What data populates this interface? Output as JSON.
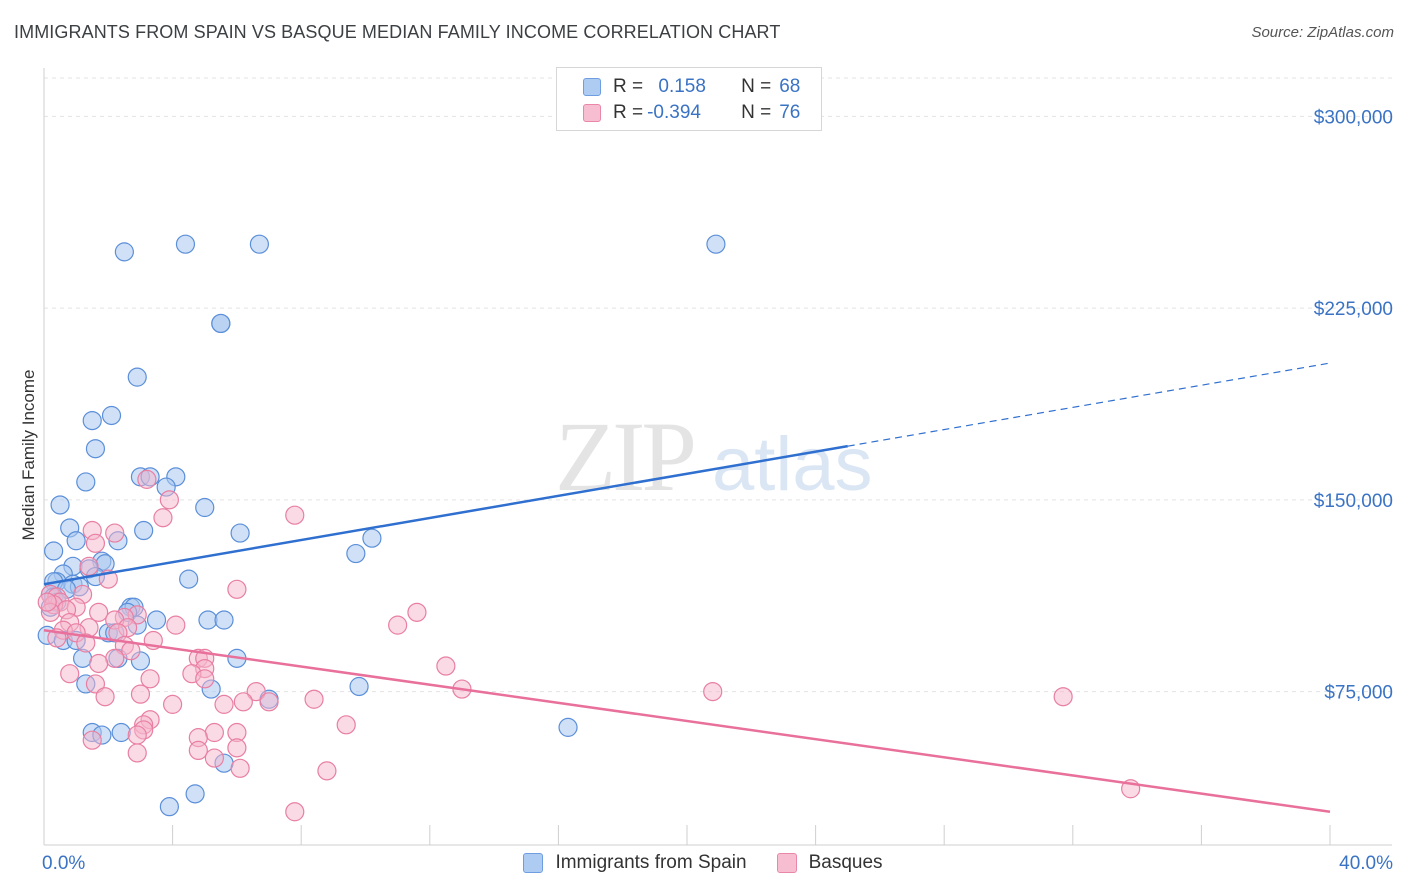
{
  "header": {
    "title": "IMMIGRANTS FROM SPAIN VS BASQUE MEDIAN FAMILY INCOME CORRELATION CHART",
    "source": "Source: ZipAtlas.com"
  },
  "watermark": {
    "zip": "ZIP",
    "atlas": "atlas"
  },
  "legend": {
    "rows": [
      {
        "r_label": "R =",
        "r_value": " 0.158",
        "n_label": "N =",
        "n_value": "68",
        "color": "#aecbf2",
        "border": "#6f9ee0"
      },
      {
        "r_label": "R =",
        "r_value": "-0.394",
        "n_label": "N =",
        "n_value": "76",
        "color": "#f7bdd0",
        "border": "#e887a8"
      }
    ]
  },
  "colors": {
    "blue_fill": "#a9c8f0",
    "blue_stroke": "#5b8fd9",
    "blue_line": "#2f6fcf",
    "pink_fill": "#f5b6cb",
    "pink_stroke": "#e87fa3",
    "pink_line": "#e8709b",
    "axis_text": "#3a73c4"
  },
  "chart_data": {
    "type": "scatter",
    "title": "IMMIGRANTS FROM SPAIN VS BASQUE MEDIAN FAMILY INCOME CORRELATION CHART",
    "xlabel": "",
    "ylabel": "Median Family Income",
    "xlim": [
      0,
      40
    ],
    "ylim": [
      15000,
      315000
    ],
    "y_ticks": [
      75000,
      150000,
      225000,
      300000
    ],
    "y_tick_labels": [
      "$75,000",
      "$150,000",
      "$225,000",
      "$300,000"
    ],
    "x_tick_labels": {
      "min": "0.0%",
      "max": "40.0%"
    },
    "series": [
      {
        "name": "Immigrants from Spain",
        "R": 0.158,
        "N": 68,
        "trend": {
          "x0": 0,
          "y0": 117000,
          "x1": 25,
          "y1": 171000,
          "dash_to_x": 40,
          "dash_to_y": 203500
        },
        "points": [
          [
            2.5,
            247000
          ],
          [
            4.4,
            250000
          ],
          [
            6.7,
            250000
          ],
          [
            20.9,
            250000
          ],
          [
            5.5,
            219000
          ],
          [
            5.5,
            219000
          ],
          [
            2.9,
            198000
          ],
          [
            2.1,
            183000
          ],
          [
            1.5,
            181000
          ],
          [
            1.6,
            170000
          ],
          [
            3.0,
            159000
          ],
          [
            3.3,
            159000
          ],
          [
            4.1,
            159000
          ],
          [
            1.3,
            157000
          ],
          [
            3.8,
            155000
          ],
          [
            0.5,
            148000
          ],
          [
            5.0,
            147000
          ],
          [
            0.8,
            139000
          ],
          [
            3.1,
            138000
          ],
          [
            6.1,
            137000
          ],
          [
            10.2,
            135000
          ],
          [
            1.0,
            134000
          ],
          [
            2.3,
            134000
          ],
          [
            9.7,
            129000
          ],
          [
            0.3,
            130000
          ],
          [
            1.8,
            126000
          ],
          [
            1.9,
            125000
          ],
          [
            0.9,
            124000
          ],
          [
            1.4,
            123000
          ],
          [
            0.6,
            121000
          ],
          [
            1.6,
            120000
          ],
          [
            4.5,
            119000
          ],
          [
            0.4,
            118000
          ],
          [
            0.3,
            118000
          ],
          [
            0.9,
            117000
          ],
          [
            1.1,
            116000
          ],
          [
            0.7,
            115000
          ],
          [
            0.2,
            113000
          ],
          [
            0.3,
            112000
          ],
          [
            0.4,
            110000
          ],
          [
            2.7,
            108000
          ],
          [
            0.2,
            108000
          ],
          [
            2.8,
            108000
          ],
          [
            2.6,
            106000
          ],
          [
            3.5,
            103000
          ],
          [
            5.1,
            103000
          ],
          [
            5.6,
            103000
          ],
          [
            2.9,
            101000
          ],
          [
            2.0,
            98000
          ],
          [
            2.2,
            98000
          ],
          [
            0.1,
            97000
          ],
          [
            0.6,
            95000
          ],
          [
            1.0,
            95000
          ],
          [
            2.3,
            88000
          ],
          [
            1.2,
            88000
          ],
          [
            3.0,
            87000
          ],
          [
            6.0,
            88000
          ],
          [
            5.2,
            76000
          ],
          [
            9.8,
            77000
          ],
          [
            1.3,
            78000
          ],
          [
            7.0,
            72000
          ],
          [
            16.3,
            61000
          ],
          [
            1.5,
            59000
          ],
          [
            1.8,
            58000
          ],
          [
            2.4,
            59000
          ],
          [
            5.6,
            47000
          ],
          [
            4.7,
            35000
          ],
          [
            3.9,
            30000
          ]
        ]
      },
      {
        "name": "Basques",
        "R": -0.394,
        "N": 76,
        "trend": {
          "x0": 0,
          "y0": 99000,
          "x1": 40,
          "y1": 28000
        },
        "points": [
          [
            3.2,
            158000
          ],
          [
            3.9,
            150000
          ],
          [
            7.8,
            144000
          ],
          [
            3.7,
            143000
          ],
          [
            1.5,
            138000
          ],
          [
            2.2,
            137000
          ],
          [
            1.6,
            133000
          ],
          [
            1.4,
            124000
          ],
          [
            2.0,
            119000
          ],
          [
            6.0,
            115000
          ],
          [
            1.2,
            113000
          ],
          [
            0.2,
            113000
          ],
          [
            0.4,
            112000
          ],
          [
            0.5,
            110000
          ],
          [
            0.3,
            109000
          ],
          [
            1.0,
            108000
          ],
          [
            0.7,
            107000
          ],
          [
            0.2,
            106000
          ],
          [
            11.6,
            106000
          ],
          [
            1.7,
            106000
          ],
          [
            2.9,
            105000
          ],
          [
            2.5,
            104000
          ],
          [
            2.2,
            103000
          ],
          [
            0.8,
            102000
          ],
          [
            4.1,
            101000
          ],
          [
            11.0,
            101000
          ],
          [
            2.6,
            100000
          ],
          [
            1.4,
            100000
          ],
          [
            0.6,
            99000
          ],
          [
            1.0,
            98000
          ],
          [
            2.3,
            98000
          ],
          [
            0.4,
            96000
          ],
          [
            3.4,
            95000
          ],
          [
            1.3,
            94000
          ],
          [
            2.5,
            93000
          ],
          [
            2.7,
            91000
          ],
          [
            2.2,
            88000
          ],
          [
            4.8,
            88000
          ],
          [
            5.0,
            88000
          ],
          [
            1.7,
            86000
          ],
          [
            12.5,
            85000
          ],
          [
            5.0,
            84000
          ],
          [
            4.6,
            82000
          ],
          [
            0.8,
            82000
          ],
          [
            3.3,
            80000
          ],
          [
            5.0,
            80000
          ],
          [
            1.6,
            78000
          ],
          [
            13.0,
            76000
          ],
          [
            6.6,
            75000
          ],
          [
            20.8,
            75000
          ],
          [
            3.0,
            74000
          ],
          [
            1.9,
            73000
          ],
          [
            31.7,
            73000
          ],
          [
            8.4,
            72000
          ],
          [
            6.2,
            71000
          ],
          [
            5.6,
            70000
          ],
          [
            4.0,
            70000
          ],
          [
            7.0,
            71000
          ],
          [
            3.3,
            64000
          ],
          [
            3.1,
            62000
          ],
          [
            9.4,
            62000
          ],
          [
            3.1,
            60000
          ],
          [
            5.3,
            59000
          ],
          [
            6.0,
            59000
          ],
          [
            2.9,
            58000
          ],
          [
            4.8,
            57000
          ],
          [
            1.5,
            56000
          ],
          [
            6.0,
            53000
          ],
          [
            4.8,
            52000
          ],
          [
            2.9,
            51000
          ],
          [
            5.3,
            49000
          ],
          [
            6.1,
            45000
          ],
          [
            8.8,
            44000
          ],
          [
            33.8,
            37000
          ],
          [
            7.8,
            28000
          ],
          [
            0.1,
            110000
          ]
        ]
      }
    ]
  }
}
